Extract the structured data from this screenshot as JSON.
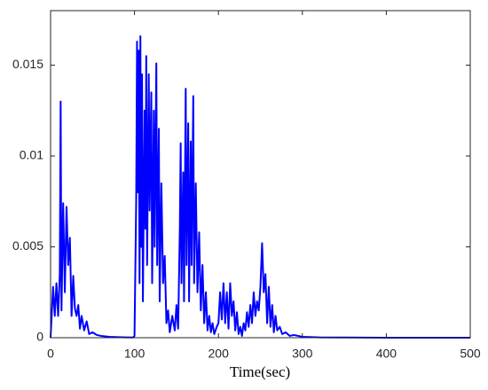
{
  "chart_data": {
    "type": "line",
    "x_label": "Time(sec)",
    "x": [
      0,
      3,
      5,
      7,
      9,
      11,
      12,
      13,
      15,
      17,
      19,
      21,
      23,
      25,
      27,
      29,
      31,
      33,
      35,
      37,
      40,
      43,
      46,
      50,
      55,
      60,
      70,
      80,
      90,
      98,
      100,
      102,
      103,
      104,
      105,
      106,
      107,
      108,
      109,
      110,
      112,
      113,
      114,
      115,
      117,
      118,
      120,
      121,
      123,
      124,
      126,
      127,
      129,
      130,
      132,
      134,
      136,
      138,
      140,
      142,
      145,
      148,
      150,
      152,
      154,
      155,
      156,
      158,
      159,
      161,
      162,
      164,
      165,
      167,
      168,
      170,
      171,
      173,
      175,
      177,
      179,
      181,
      183,
      185,
      187,
      189,
      191,
      193,
      195,
      198,
      200,
      202,
      204,
      206,
      208,
      210,
      212,
      214,
      216,
      218,
      220,
      222,
      224,
      226,
      228,
      230,
      232,
      234,
      236,
      238,
      240,
      242,
      244,
      246,
      248,
      250,
      252,
      254,
      256,
      258,
      260,
      262,
      264,
      266,
      268,
      270,
      273,
      276,
      280,
      285,
      290,
      300,
      320,
      350,
      400,
      450,
      500
    ],
    "series": [
      {
        "color": "#0000ff",
        "values": [
          0,
          0.0028,
          0.0012,
          0.003,
          0.0012,
          0.0035,
          0.013,
          0.0015,
          0.0074,
          0.0025,
          0.0072,
          0.004,
          0.0055,
          0.0012,
          0.0034,
          0.0016,
          0.0012,
          0.0018,
          0.0005,
          0.0012,
          0.0004,
          0.0009,
          0.0002,
          0.0003,
          0.00015,
          0.0001,
          5e-05,
          3e-05,
          2e-05,
          1e-05,
          0.0001,
          0.0075,
          0.0163,
          0.008,
          0.0158,
          0.003,
          0.0166,
          0.005,
          0.0145,
          0.002,
          0.0125,
          0.006,
          0.0155,
          0.004,
          0.0145,
          0.007,
          0.0135,
          0.003,
          0.0125,
          0.005,
          0.0151,
          0.004,
          0.0115,
          0.002,
          0.0085,
          0.003,
          0.0045,
          0.0008,
          0.0015,
          0.0003,
          0.0012,
          0.0004,
          0.0018,
          0.0005,
          0.006,
          0.0107,
          0.003,
          0.0091,
          0.002,
          0.0137,
          0.004,
          0.0118,
          0.002,
          0.0108,
          0.004,
          0.0133,
          0.003,
          0.0085,
          0.0025,
          0.0058,
          0.0015,
          0.004,
          0.0008,
          0.0025,
          0.0004,
          0.0012,
          0.0003,
          0.0008,
          0.0002,
          0.0006,
          0.0008,
          0.0025,
          0.001,
          0.003,
          0.0008,
          0.0025,
          0.0005,
          0.003,
          0.0012,
          0.002,
          0.0004,
          0.0014,
          0.0002,
          0.0006,
          0.0001,
          0.0008,
          0.0004,
          0.0014,
          0.0006,
          0.0018,
          0.0008,
          0.0025,
          0.0012,
          0.002,
          0.0015,
          0.0028,
          0.0052,
          0.0025,
          0.0035,
          0.0008,
          0.0028,
          0.0006,
          0.0018,
          0.0003,
          0.0012,
          0.0004,
          0.0006,
          0.0002,
          0.0003,
          0.0001,
          0.00015,
          5e-05,
          2e-05,
          1e-05,
          0,
          0,
          0
        ]
      }
    ],
    "xlim": [
      0,
      500
    ],
    "ylim": [
      0,
      0.018
    ],
    "xticks": [
      0,
      100,
      200,
      300,
      400,
      500
    ],
    "yticks": [
      0,
      0.005,
      0.01,
      0.015
    ],
    "grid": false
  }
}
